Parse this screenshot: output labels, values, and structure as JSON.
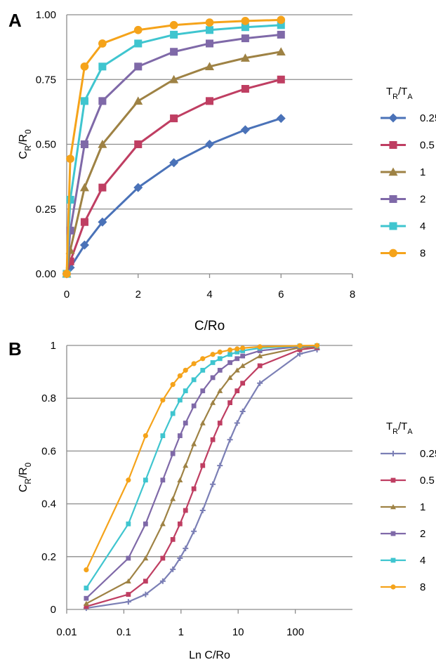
{
  "panels": [
    {
      "letter": "A",
      "xlabel": "C/Ro",
      "ylabel": "C_R/R_0",
      "legend_title": "T_R/T_A"
    },
    {
      "letter": "B",
      "xlabel": "Ln C/Ro",
      "ylabel": "C_R/R_0",
      "legend_title": "T_R/T_A"
    }
  ],
  "chart_data": [
    {
      "type": "line",
      "panel": "A",
      "xlabel": "C/Ro",
      "ylabel": "CR/R0",
      "xlim": [
        0,
        8
      ],
      "ylim": [
        0,
        1
      ],
      "x_ticks": [
        "0",
        "2",
        "4",
        "6",
        "8"
      ],
      "y_ticks": [
        "0.00",
        "0.25",
        "0.50",
        "0.75",
        "1.00"
      ],
      "grid": "horizontal",
      "legend_title": "TR/TA",
      "legend_position": "right",
      "series": [
        {
          "name": "0.25",
          "color": "#4a72b8",
          "marker": "diamond",
          "x": [
            0,
            0.1,
            0.5,
            1,
            2,
            3,
            4,
            5,
            6
          ],
          "y": [
            0,
            0.024,
            0.111,
            0.2,
            0.333,
            0.429,
            0.5,
            0.556,
            0.6
          ]
        },
        {
          "name": "0.5",
          "color": "#bf3e62",
          "marker": "square",
          "x": [
            0,
            0.1,
            0.5,
            1,
            2,
            3,
            4,
            5,
            6
          ],
          "y": [
            0,
            0.048,
            0.2,
            0.333,
            0.5,
            0.6,
            0.667,
            0.714,
            0.75
          ]
        },
        {
          "name": "1",
          "color": "#9e8244",
          "marker": "triangle",
          "x": [
            0,
            0.1,
            0.5,
            1,
            2,
            3,
            4,
            5,
            6
          ],
          "y": [
            0,
            0.091,
            0.333,
            0.5,
            0.667,
            0.75,
            0.8,
            0.833,
            0.857
          ]
        },
        {
          "name": "2",
          "color": "#7f69a8",
          "marker": "square",
          "x": [
            0,
            0.1,
            0.5,
            1,
            2,
            3,
            4,
            5,
            6
          ],
          "y": [
            0,
            0.167,
            0.5,
            0.667,
            0.8,
            0.857,
            0.889,
            0.909,
            0.923
          ]
        },
        {
          "name": "4",
          "color": "#3fc5cf",
          "marker": "square",
          "x": [
            0,
            0.1,
            0.5,
            1,
            2,
            3,
            4,
            5,
            6
          ],
          "y": [
            0,
            0.286,
            0.667,
            0.8,
            0.889,
            0.923,
            0.941,
            0.952,
            0.96
          ]
        },
        {
          "name": "8",
          "color": "#f5a31a",
          "marker": "circle",
          "x": [
            0,
            0.1,
            0.5,
            1,
            2,
            3,
            4,
            5,
            6
          ],
          "y": [
            0,
            0.444,
            0.8,
            0.889,
            0.941,
            0.96,
            0.97,
            0.976,
            0.98
          ]
        }
      ]
    },
    {
      "type": "line",
      "panel": "B",
      "xlabel": "Ln C/Ro",
      "ylabel": "CR/R0",
      "xscale": "log",
      "xlim": [
        0.01,
        1000
      ],
      "ylim": [
        0,
        1
      ],
      "x_ticks": [
        "0.01",
        "0.1",
        "1",
        "10",
        "100"
      ],
      "y_ticks": [
        "0",
        "0.2",
        "0.4",
        "0.6",
        "0.8",
        "1"
      ],
      "grid": "horizontal",
      "legend_title": "TR/TA",
      "legend_position": "right",
      "series": [
        {
          "name": "0.25",
          "color": "#7b7fb5",
          "marker": "plus",
          "x": [
            0.022,
            0.12,
            0.24,
            0.48,
            0.72,
            0.96,
            1.2,
            1.68,
            2.4,
            3.6,
            4.8,
            7.2,
            9.6,
            12,
            24,
            120,
            240
          ],
          "y": [
            0.005,
            0.029,
            0.057,
            0.107,
            0.152,
            0.194,
            0.231,
            0.296,
            0.375,
            0.474,
            0.545,
            0.643,
            0.706,
            0.75,
            0.857,
            0.968,
            0.984
          ]
        },
        {
          "name": "0.5",
          "color": "#bf3e62",
          "marker": "square",
          "x": [
            0.022,
            0.12,
            0.24,
            0.48,
            0.72,
            0.96,
            1.2,
            1.68,
            2.4,
            3.6,
            4.8,
            7.2,
            9.6,
            12,
            24,
            120,
            240
          ],
          "y": [
            0.011,
            0.057,
            0.107,
            0.194,
            0.265,
            0.324,
            0.375,
            0.457,
            0.545,
            0.643,
            0.706,
            0.783,
            0.828,
            0.857,
            0.923,
            0.984,
            0.992
          ]
        },
        {
          "name": "1",
          "color": "#9e8244",
          "marker": "triangle",
          "x": [
            0.022,
            0.12,
            0.24,
            0.48,
            0.72,
            0.96,
            1.2,
            1.68,
            2.4,
            3.6,
            4.8,
            7.2,
            9.6,
            12,
            24,
            120,
            240
          ],
          "y": [
            0.022,
            0.107,
            0.194,
            0.324,
            0.419,
            0.49,
            0.545,
            0.627,
            0.706,
            0.783,
            0.828,
            0.878,
            0.906,
            0.923,
            0.96,
            0.992,
            0.996
          ]
        },
        {
          "name": "2",
          "color": "#7f69a8",
          "marker": "square",
          "x": [
            0.022,
            0.12,
            0.24,
            0.48,
            0.72,
            0.96,
            1.2,
            1.68,
            2.4,
            3.6,
            4.8,
            7.2,
            9.6,
            12,
            24,
            120,
            240
          ],
          "y": [
            0.042,
            0.194,
            0.324,
            0.49,
            0.59,
            0.658,
            0.706,
            0.771,
            0.828,
            0.878,
            0.906,
            0.935,
            0.95,
            0.96,
            0.98,
            0.996,
            0.998
          ]
        },
        {
          "name": "4",
          "color": "#3fc5cf",
          "marker": "square",
          "x": [
            0.022,
            0.12,
            0.24,
            0.48,
            0.72,
            0.96,
            1.2,
            1.68,
            2.4,
            3.6,
            4.8,
            7.2,
            9.6,
            12,
            24,
            120,
            240
          ],
          "y": [
            0.081,
            0.324,
            0.49,
            0.658,
            0.742,
            0.793,
            0.828,
            0.87,
            0.906,
            0.935,
            0.95,
            0.966,
            0.975,
            0.98,
            0.99,
            0.998,
            0.999
          ]
        },
        {
          "name": "8",
          "color": "#f5a31a",
          "marker": "circle",
          "x": [
            0.022,
            0.12,
            0.24,
            0.48,
            0.72,
            0.96,
            1.2,
            1.68,
            2.4,
            3.6,
            4.8,
            7.2,
            9.6,
            12,
            24,
            120,
            240
          ],
          "y": [
            0.15,
            0.49,
            0.658,
            0.793,
            0.852,
            0.885,
            0.906,
            0.931,
            0.95,
            0.966,
            0.975,
            0.983,
            0.987,
            0.99,
            0.995,
            0.999,
            1.0
          ]
        }
      ]
    }
  ]
}
